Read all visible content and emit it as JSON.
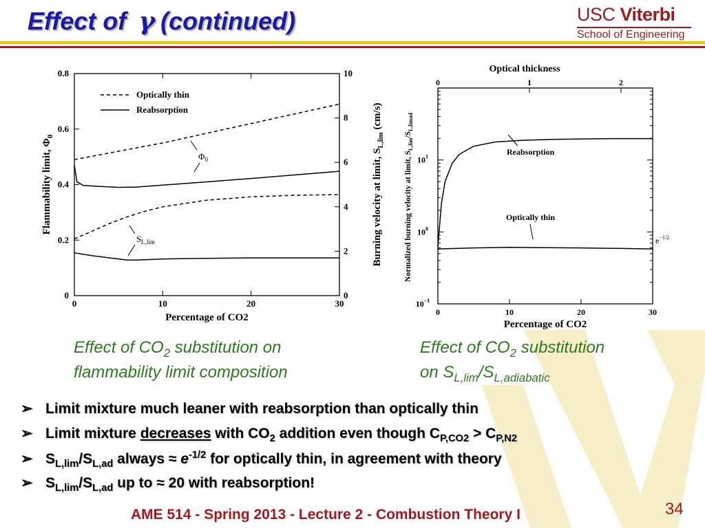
{
  "slide": {
    "title_pre": "Effect of",
    "title_symbol": "γ",
    "title_post": "(continued)",
    "logo": {
      "usc": "USC",
      "viterbi": "Viterbi",
      "school": "School of Engineering"
    },
    "captions": [
      {
        "line1_pre": "Effect of CO",
        "line1_sub": "2",
        "line1_post": " substitution on",
        "line2": "flammability limit composition"
      },
      {
        "line1_pre": "Effect of CO",
        "line1_sub": "2",
        "line1_post": " substitution",
        "line2_pre": "on S",
        "line2_sub1": "L,lim",
        "line2_mid": "/S",
        "line2_sub2": "L,adiabatic"
      }
    ],
    "bullets": [
      {
        "text": "Limit mixture much leaner with reabsorption than optically thin"
      },
      {
        "pre": "Limit mixture ",
        "underlined": "decreases",
        "mid": " with CO",
        "sub1": "2",
        "mid2": " addition even though C",
        "sub2": "P,CO2",
        "mid3": " > C",
        "sub3": "P,N2"
      },
      {
        "s": "S",
        "sub1": "L,lim",
        "slash": "/S",
        "sub2": "L,ad",
        "mid": " always ≈ ",
        "e": "e",
        "sup": "-1/2",
        "post": " for optically thin, in agreement with theory"
      },
      {
        "s": "S",
        "sub1": "L,lim",
        "slash": "/S",
        "sub2": "L,ad",
        "post": " up to ≈ 20 with reabsorption!"
      }
    ],
    "bullet_symbol": "➢",
    "footer": "AME 514 - Spring 2013 - Lecture 2 - Combustion Theory I",
    "page_number": "34"
  },
  "colors": {
    "title": "#1a1aa6",
    "caption": "#2b7a1f",
    "accent_red": "#a6171e",
    "accent_gold": "#f2c300"
  },
  "chart_data": [
    {
      "type": "line",
      "xlabel": "Percentage  of  CO2",
      "ylabel_left": "Flammability  limit,  Φ",
      "ylabel_left_sub": "0",
      "ylabel_right": "Burning  velocity  at    limit,  S",
      "ylabel_right_sub": "L,lim",
      "ylabel_right_unit": "(cm/s)",
      "xlim": [
        0,
        30
      ],
      "ylim_left": [
        0,
        0.8
      ],
      "ylim_right": [
        0,
        10
      ],
      "x_ticks": [
        "0",
        "10",
        "20",
        "30"
      ],
      "y_ticks_left": [
        "0",
        "0.2",
        "0.4",
        "0.6",
        "0.8"
      ],
      "y_ticks_right": [
        "0",
        "2",
        "4",
        "6",
        "8",
        "10"
      ],
      "legend": [
        {
          "label": "Optically  thin",
          "style": "dashed"
        },
        {
          "label": "Reabsorption",
          "style": "solid"
        }
      ],
      "legend_position": "top-left",
      "annotations": [
        {
          "label": "Φ",
          "sub": "0"
        },
        {
          "label": "S",
          "sub": "L,lim"
        }
      ],
      "series": [
        {
          "axis": "left",
          "style": "dashed",
          "x": [
            0,
            5,
            10,
            15,
            20,
            25,
            30
          ],
          "y": [
            0.49,
            0.52,
            0.55,
            0.585,
            0.62,
            0.655,
            0.69
          ]
        },
        {
          "axis": "left",
          "style": "solid",
          "x": [
            0,
            0.3,
            1,
            3,
            5,
            7,
            10,
            15,
            20,
            25,
            30
          ],
          "y": [
            0.47,
            0.41,
            0.397,
            0.393,
            0.39,
            0.391,
            0.398,
            0.41,
            0.422,
            0.435,
            0.448
          ]
        },
        {
          "axis": "right",
          "style": "dashed",
          "x": [
            0,
            2,
            4,
            6,
            8,
            10,
            15,
            20,
            25,
            30
          ],
          "y": [
            2.55,
            2.9,
            3.25,
            3.55,
            3.8,
            4.0,
            4.3,
            4.45,
            4.52,
            4.55
          ]
        },
        {
          "axis": "right",
          "style": "solid",
          "x": [
            0,
            2,
            4,
            6,
            7,
            10,
            15,
            20,
            25,
            30
          ],
          "y": [
            1.93,
            1.8,
            1.7,
            1.6,
            1.6,
            1.65,
            1.68,
            1.7,
            1.7,
            1.7
          ]
        }
      ]
    },
    {
      "type": "line",
      "title": "Optical  thickness",
      "xlabel": "Percentage  of  CO2",
      "ylabel": "Normalized  burning  velocity  at  limit,  S",
      "ylabel_sub1": "L,lim",
      "ylabel_mid": "/S",
      "ylabel_sub2": "L,limad",
      "xlim": [
        0,
        30
      ],
      "ylim": [
        0.1,
        100
      ],
      "yscale": "log",
      "x_ticks": [
        "0",
        "10",
        "20",
        "30"
      ],
      "top_ticks": [
        "0",
        "1",
        "2"
      ],
      "y_ticks": [
        {
          "b": "10",
          "e": "−1"
        },
        {
          "b": "10",
          "e": "0"
        },
        {
          "b": "10",
          "e": "1"
        }
      ],
      "annotations": [
        {
          "label": "Reabsorption"
        },
        {
          "label": "Optically  thin"
        },
        {
          "label": "e",
          "sup": "−1/2"
        }
      ],
      "series": [
        {
          "name": "Reabsorption",
          "style": "solid",
          "x": [
            0,
            0.5,
            1,
            2,
            3,
            5,
            8,
            12,
            16,
            20,
            25,
            30
          ],
          "y": [
            0.62,
            2.5,
            5,
            9,
            12,
            15.5,
            17.8,
            18.8,
            19.3,
            19.6,
            19.8,
            19.8
          ]
        },
        {
          "name": "Optically  thin",
          "style": "solid",
          "x": [
            0,
            5,
            10,
            15,
            20,
            25,
            30
          ],
          "y": [
            0.58,
            0.6,
            0.61,
            0.605,
            0.6,
            0.59,
            0.58
          ]
        }
      ]
    }
  ]
}
